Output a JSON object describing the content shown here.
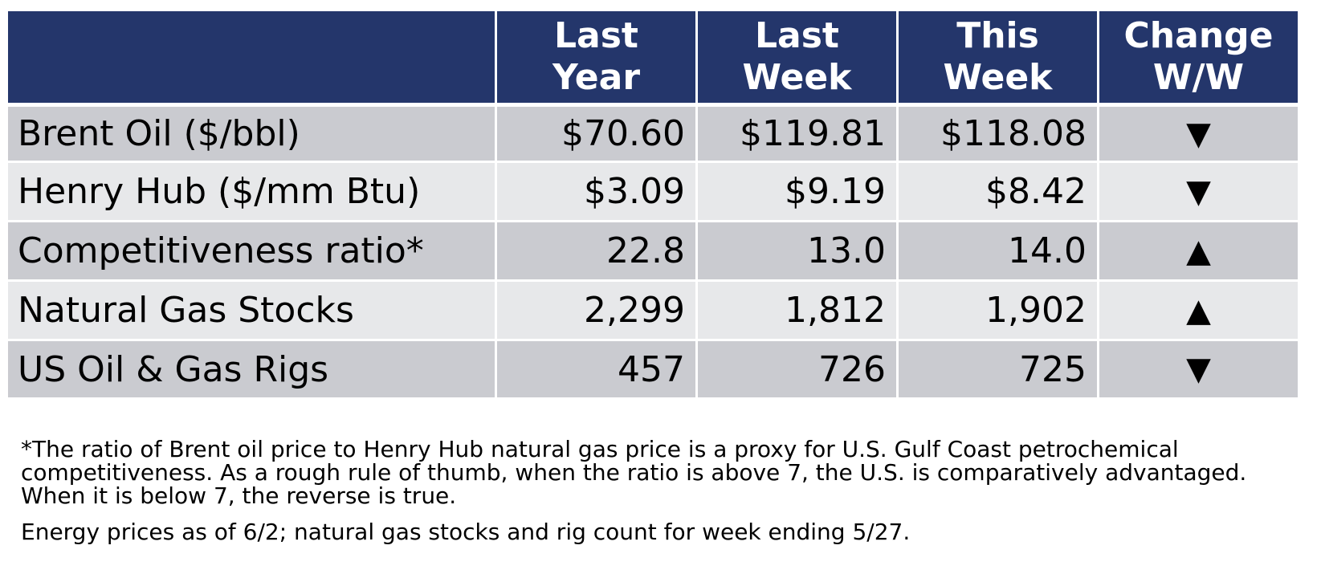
{
  "table": {
    "headers": [
      "",
      "Last\nYear",
      "Last\nWeek",
      "This\nWeek",
      "Change\nW/W"
    ],
    "rows": [
      {
        "label": "Brent Oil ($/bbl)",
        "last_year": "$70.60",
        "last_week": "$119.81",
        "this_week": "$118.08",
        "change": "▼"
      },
      {
        "label": "Henry Hub ($/mm Btu)",
        "last_year": "$3.09",
        "last_week": "$9.19",
        "this_week": "$8.42",
        "change": "▼"
      },
      {
        "label": "Competitiveness ratio*",
        "last_year": "22.8",
        "last_week": "13.0",
        "this_week": "14.0",
        "change": "▲"
      },
      {
        "label": "Natural Gas Stocks",
        "last_year": "2,299",
        "last_week": "1,812",
        "this_week": "1,902",
        "change": "▲"
      },
      {
        "label": "US Oil & Gas Rigs",
        "last_year": "457",
        "last_week": "726",
        "this_week": "725",
        "change": "▼"
      }
    ]
  },
  "notes": {
    "footnote": "*The ratio of Brent oil price to Henry Hub natural gas price is a proxy for U.S. Gulf Coast petrochemical competitiveness. As a rough rule of thumb, when the ratio is above 7, the U.S. is comparatively advantaged. When it is below 7, the reverse is true.",
    "dates": "Energy prices as of 6/2; natural gas stocks and rig count for week ending 5/27."
  },
  "colors": {
    "header_bg": "#24366b",
    "header_text": "#ffffff",
    "row_dark": "#cacbd0",
    "row_light": "#e7e8ea"
  }
}
